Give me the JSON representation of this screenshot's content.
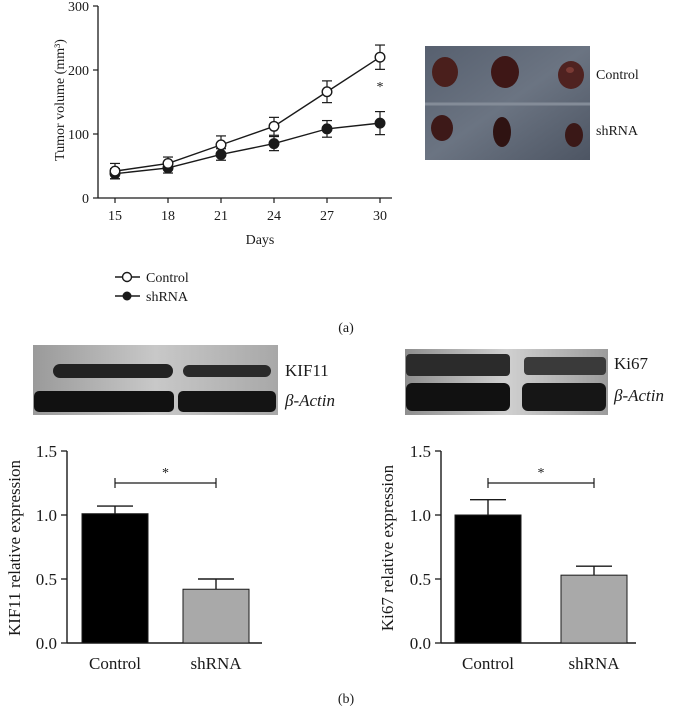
{
  "panels": {
    "a_label": "(a)",
    "b_label": "(b)"
  },
  "chart_data": [
    {
      "type": "line",
      "xlabel": "Days",
      "ylabel": "Tumor volume (mm³)",
      "x": [
        15,
        18,
        21,
        24,
        27,
        30
      ],
      "xticks": [
        "15",
        "18",
        "21",
        "24",
        "27",
        "30"
      ],
      "ylim": [
        0,
        300
      ],
      "yticks": [
        "0",
        "100",
        "200",
        "300"
      ],
      "series": [
        {
          "name": "Control",
          "marker": "open-circle",
          "values": [
            42,
            54,
            83,
            112,
            166,
            220
          ],
          "errors": [
            12,
            10,
            14,
            14,
            17,
            19
          ]
        },
        {
          "name": "shRNA",
          "marker": "filled-circle",
          "values": [
            38,
            47,
            68,
            85,
            108,
            117
          ],
          "errors": [
            8,
            8,
            9,
            11,
            13,
            18
          ]
        }
      ],
      "annotations": [
        {
          "x": 30,
          "text": "*"
        }
      ],
      "legend_position": "below",
      "grid": false
    },
    {
      "type": "bar",
      "categories": [
        "Control",
        "shRNA"
      ],
      "values": [
        1.01,
        0.42
      ],
      "errors": [
        0.06,
        0.08
      ],
      "colors": [
        "#000000",
        "#a9a9a9"
      ],
      "ylabel": "KIF11 relative expression",
      "ylim": [
        0,
        1.5
      ],
      "yticks": [
        "0.0",
        "0.5",
        "1.0",
        "1.5"
      ],
      "significance": "*",
      "grid": false
    },
    {
      "type": "bar",
      "categories": [
        "Control",
        "shRNA"
      ],
      "values": [
        1.0,
        0.53
      ],
      "errors": [
        0.12,
        0.07
      ],
      "colors": [
        "#000000",
        "#a9a9a9"
      ],
      "ylabel": "Ki67 relative expression",
      "ylim": [
        0,
        1.5
      ],
      "yticks": [
        "0.0",
        "0.5",
        "1.0",
        "1.5"
      ],
      "significance": "*",
      "grid": false
    }
  ],
  "tumor_photo": {
    "labels": [
      "Control",
      "shRNA"
    ]
  },
  "blots": {
    "left": {
      "labels": [
        "KIF11",
        "β-Actin"
      ]
    },
    "right": {
      "labels": [
        "Ki67",
        "β-Actin"
      ]
    }
  }
}
